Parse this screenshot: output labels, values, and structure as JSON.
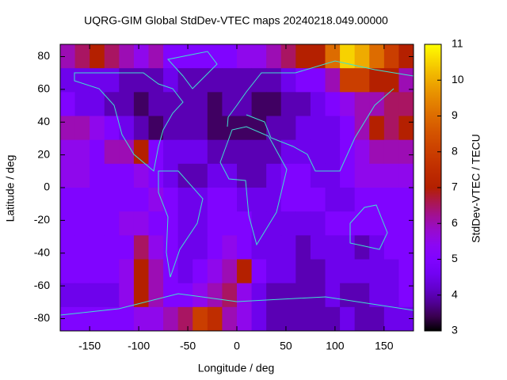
{
  "chart_data": {
    "type": "heatmap",
    "title": "UQRG-GIM Global StdDev-VTEC maps 20240218.049.00000",
    "x_label": "Longitude / deg",
    "y_label": "Latitude / deg",
    "colorbar_label": "StdDev-VTEC / TECU",
    "palette": "gnuplot",
    "xlim": [
      -180,
      180
    ],
    "xticks": [
      -150,
      -100,
      -50,
      0,
      50,
      100,
      150
    ],
    "ylim": [
      -87.5,
      87.5
    ],
    "yticks": [
      -80,
      -60,
      -40,
      -20,
      0,
      20,
      40,
      60,
      80
    ],
    "clim": [
      3,
      11
    ],
    "cticks": [
      3,
      4,
      5,
      6,
      7,
      8,
      9,
      10,
      11
    ],
    "z": [
      [
        6,
        6.5,
        7,
        6.5,
        6,
        5.5,
        6,
        5,
        5,
        5,
        5,
        5,
        5.5,
        5.5,
        6,
        6.5,
        7,
        7,
        9,
        10.5,
        10,
        9,
        8,
        7
      ],
      [
        4.5,
        4.5,
        4.5,
        4.5,
        4,
        4,
        4,
        4.5,
        4,
        4,
        4,
        4,
        4,
        4,
        4,
        4.5,
        5,
        5,
        6,
        8,
        8,
        7,
        7,
        6
      ],
      [
        5,
        4.5,
        4.5,
        4,
        4,
        3.5,
        4,
        4,
        4,
        4,
        3.5,
        4,
        4,
        3.5,
        3.5,
        4,
        4,
        4.5,
        5,
        5.5,
        6,
        6,
        6.5,
        6.5
      ],
      [
        6,
        6,
        5.5,
        5,
        4.5,
        4,
        3.5,
        4,
        4,
        4,
        3.5,
        3.5,
        3.5,
        3.5,
        4,
        4,
        4.5,
        4.5,
        4.5,
        5,
        6,
        7,
        6.5,
        7
      ],
      [
        5.5,
        5.5,
        5,
        6,
        6,
        7,
        5,
        4.5,
        4.5,
        4.5,
        4,
        4,
        4,
        4,
        4,
        4.5,
        4.5,
        4.5,
        4.5,
        5,
        5.5,
        6,
        6,
        6
      ],
      [
        5.5,
        5.5,
        5,
        5,
        5,
        5.5,
        5,
        4.5,
        4,
        4,
        4.5,
        4.5,
        4,
        4,
        4.5,
        5,
        5,
        4.5,
        4.5,
        5,
        5.5,
        5.5,
        5.5,
        5.5
      ],
      [
        5,
        5,
        5,
        5,
        5,
        5,
        5.5,
        5,
        4.5,
        4.5,
        5,
        5,
        4.5,
        4.5,
        4.5,
        5,
        5,
        5,
        4.5,
        4.5,
        5,
        5,
        5,
        5
      ],
      [
        5,
        5,
        5,
        5,
        5.5,
        5.5,
        5,
        5,
        4.5,
        4.5,
        5,
        5,
        5,
        4.5,
        4.5,
        4.5,
        4.5,
        4.5,
        5,
        5,
        5,
        5,
        5,
        5
      ],
      [
        5,
        5,
        5,
        5,
        5,
        6.5,
        5.5,
        5,
        4.5,
        4.5,
        5,
        5.5,
        5,
        4.5,
        4.5,
        4.5,
        4,
        4.5,
        4.5,
        4.5,
        4,
        4.5,
        5,
        5
      ],
      [
        5,
        5,
        5,
        5,
        5.5,
        7,
        6,
        5,
        4.5,
        5,
        5.5,
        6,
        7,
        5,
        4.5,
        4.5,
        4,
        4,
        4.5,
        4.5,
        4.5,
        4.5,
        4.5,
        5
      ],
      [
        4.5,
        4.5,
        4.5,
        4.5,
        5.5,
        7,
        6,
        5,
        5,
        5.5,
        6,
        6.5,
        5.5,
        4.5,
        4,
        4,
        4,
        4,
        4.5,
        4,
        4,
        4.5,
        4.5,
        5
      ],
      [
        5,
        5,
        5,
        5,
        5,
        5.5,
        5.5,
        6,
        6.5,
        8,
        7.5,
        6,
        5.5,
        4.5,
        4,
        4,
        4,
        4,
        4,
        4.5,
        4,
        4,
        4.5,
        4.5
      ]
    ]
  }
}
